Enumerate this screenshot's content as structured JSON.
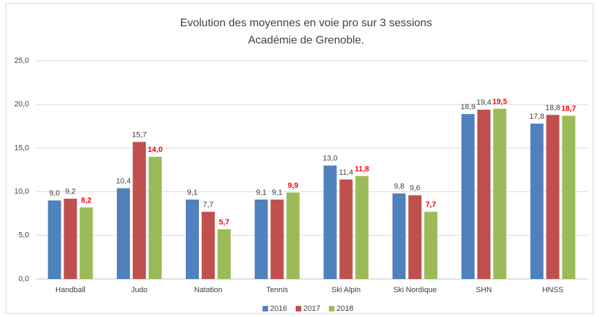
{
  "chart_data": {
    "type": "bar",
    "title": "Evolution des moyennes en voie pro sur 3 sessions",
    "subtitle": "Académie de Grenoble.",
    "categories": [
      "Handball",
      "Judo",
      "Natation",
      "Tennis",
      "Ski Alpin",
      "Ski Nordique",
      "SHN",
      "HNSS"
    ],
    "series": [
      {
        "name": "2016",
        "color": "#4f81bd",
        "label_color": "#404040",
        "label_bold": false,
        "values": [
          9.0,
          10.4,
          9.1,
          9.1,
          13.0,
          9.8,
          18.9,
          17.8
        ],
        "value_labels": [
          "9,0",
          "10,4",
          "9,1",
          "9,1",
          "13,0",
          "9,8",
          "18,9",
          "17,8"
        ]
      },
      {
        "name": "2017",
        "color": "#c0504d",
        "label_color": "#404040",
        "label_bold": false,
        "values": [
          9.2,
          15.7,
          7.7,
          9.1,
          11.4,
          9.6,
          19.4,
          18.8
        ],
        "value_labels": [
          "9,2",
          "15,7",
          "7,7",
          "9,1",
          "11,4",
          "9,6",
          "19,4",
          "18,8"
        ]
      },
      {
        "name": "2018",
        "color": "#9bbb59",
        "label_color": "#ff0000",
        "label_bold": true,
        "values": [
          8.2,
          14.0,
          5.7,
          9.9,
          11.8,
          7.7,
          19.5,
          18.7
        ],
        "value_labels": [
          "8,2",
          "14,0",
          "5,7",
          "9,9",
          "11,8",
          "7,7",
          "19,5",
          "18,7"
        ]
      }
    ],
    "ylim": [
      0,
      25
    ],
    "yticks": [
      {
        "value": 0,
        "label": "0,0"
      },
      {
        "value": 5,
        "label": "5,0"
      },
      {
        "value": 10,
        "label": "10,0"
      },
      {
        "value": 15,
        "label": "15,0"
      },
      {
        "value": 20,
        "label": "20,0"
      },
      {
        "value": 25,
        "label": "25,0"
      }
    ],
    "grid": true,
    "legend": "bottom"
  }
}
